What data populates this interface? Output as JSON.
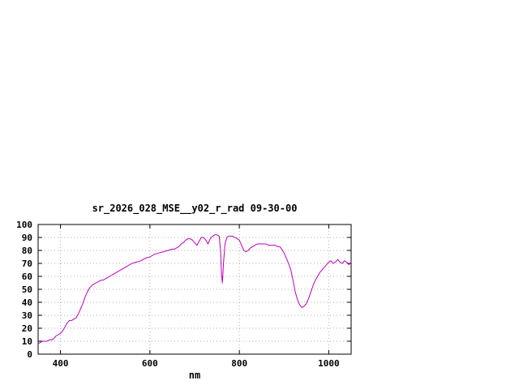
{
  "window": {
    "background": "#ffffff"
  },
  "chart_data": {
    "type": "line",
    "title": "sr_2026_028_MSE__y02_r_rad 09-30-00",
    "xlabel": "nm",
    "ylabel": "",
    "xlim": [
      350,
      1050
    ],
    "ylim": [
      0,
      100
    ],
    "xticks": [
      400,
      600,
      800,
      1000
    ],
    "yticks": [
      0,
      10,
      20,
      30,
      40,
      50,
      60,
      70,
      80,
      90,
      100
    ],
    "grid": true,
    "legend": "none",
    "line_color": "#bb00bb",
    "border_color": "#000000",
    "grid_color": "#b0b0b0",
    "series": [
      {
        "name": "sr_2026_028_MSE__y02_r_rad",
        "points": [
          [
            350,
            8
          ],
          [
            355,
            9
          ],
          [
            360,
            10
          ],
          [
            365,
            10
          ],
          [
            370,
            10
          ],
          [
            375,
            11
          ],
          [
            380,
            11
          ],
          [
            385,
            12
          ],
          [
            390,
            14
          ],
          [
            395,
            15
          ],
          [
            400,
            16
          ],
          [
            405,
            18
          ],
          [
            410,
            21
          ],
          [
            415,
            24
          ],
          [
            420,
            26
          ],
          [
            425,
            26
          ],
          [
            430,
            27
          ],
          [
            435,
            28
          ],
          [
            440,
            31
          ],
          [
            445,
            35
          ],
          [
            450,
            39
          ],
          [
            455,
            44
          ],
          [
            460,
            48
          ],
          [
            465,
            51
          ],
          [
            470,
            53
          ],
          [
            475,
            54
          ],
          [
            480,
            55
          ],
          [
            485,
            56
          ],
          [
            490,
            57
          ],
          [
            495,
            57
          ],
          [
            500,
            58
          ],
          [
            510,
            60
          ],
          [
            520,
            62
          ],
          [
            530,
            64
          ],
          [
            540,
            66
          ],
          [
            550,
            68
          ],
          [
            560,
            70
          ],
          [
            570,
            71
          ],
          [
            580,
            72
          ],
          [
            590,
            74
          ],
          [
            600,
            75
          ],
          [
            610,
            77
          ],
          [
            620,
            78
          ],
          [
            630,
            79
          ],
          [
            640,
            80
          ],
          [
            650,
            81
          ],
          [
            655,
            81
          ],
          [
            660,
            82
          ],
          [
            665,
            83
          ],
          [
            670,
            85
          ],
          [
            675,
            86
          ],
          [
            680,
            88
          ],
          [
            685,
            89
          ],
          [
            690,
            89
          ],
          [
            695,
            88
          ],
          [
            700,
            86
          ],
          [
            705,
            84
          ],
          [
            710,
            87
          ],
          [
            715,
            90
          ],
          [
            720,
            90
          ],
          [
            725,
            88
          ],
          [
            730,
            85
          ],
          [
            735,
            89
          ],
          [
            740,
            91
          ],
          [
            745,
            92
          ],
          [
            750,
            92
          ],
          [
            755,
            91
          ],
          [
            758,
            80
          ],
          [
            760,
            62
          ],
          [
            762,
            55
          ],
          [
            765,
            72
          ],
          [
            768,
            85
          ],
          [
            772,
            90
          ],
          [
            776,
            91
          ],
          [
            780,
            91
          ],
          [
            785,
            91
          ],
          [
            790,
            90
          ],
          [
            795,
            89
          ],
          [
            800,
            88
          ],
          [
            805,
            84
          ],
          [
            810,
            80
          ],
          [
            815,
            79
          ],
          [
            820,
            80
          ],
          [
            825,
            82
          ],
          [
            830,
            83
          ],
          [
            835,
            84
          ],
          [
            840,
            85
          ],
          [
            845,
            85
          ],
          [
            850,
            85
          ],
          [
            855,
            85
          ],
          [
            860,
            85
          ],
          [
            865,
            84
          ],
          [
            870,
            84
          ],
          [
            875,
            84
          ],
          [
            880,
            84
          ],
          [
            885,
            83
          ],
          [
            890,
            83
          ],
          [
            895,
            81
          ],
          [
            900,
            78
          ],
          [
            905,
            74
          ],
          [
            910,
            70
          ],
          [
            915,
            65
          ],
          [
            920,
            57
          ],
          [
            925,
            48
          ],
          [
            930,
            42
          ],
          [
            935,
            38
          ],
          [
            940,
            36
          ],
          [
            945,
            37
          ],
          [
            950,
            39
          ],
          [
            955,
            43
          ],
          [
            960,
            48
          ],
          [
            965,
            53
          ],
          [
            970,
            57
          ],
          [
            975,
            60
          ],
          [
            980,
            63
          ],
          [
            985,
            65
          ],
          [
            990,
            67
          ],
          [
            995,
            69
          ],
          [
            1000,
            71
          ],
          [
            1005,
            72
          ],
          [
            1010,
            70
          ],
          [
            1015,
            71
          ],
          [
            1020,
            73
          ],
          [
            1025,
            71
          ],
          [
            1030,
            70
          ],
          [
            1035,
            72
          ],
          [
            1040,
            71
          ],
          [
            1045,
            69
          ],
          [
            1050,
            71
          ]
        ]
      }
    ]
  }
}
